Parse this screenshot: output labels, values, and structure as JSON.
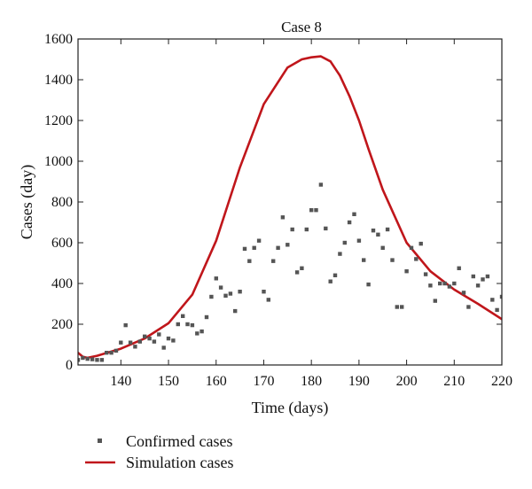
{
  "chart_data": {
    "type": "scatter",
    "title": "Case 8",
    "xlabel": "Time (days)",
    "ylabel": "Cases (day)",
    "xlim": [
      131,
      220
    ],
    "ylim": [
      0,
      1600
    ],
    "x_ticks": [
      140,
      150,
      160,
      170,
      180,
      190,
      200,
      210,
      220
    ],
    "y_ticks": [
      0,
      200,
      400,
      600,
      800,
      1000,
      1200,
      1400,
      1600
    ],
    "grid": false,
    "legend_position": "bottom-left",
    "series": [
      {
        "name": "Confirmed cases",
        "kind": "scatter",
        "color": "#555555",
        "points": [
          [
            131,
            25
          ],
          [
            132,
            35
          ],
          [
            133,
            30
          ],
          [
            134,
            28
          ],
          [
            135,
            25
          ],
          [
            136,
            25
          ],
          [
            137,
            60
          ],
          [
            138,
            60
          ],
          [
            139,
            70
          ],
          [
            140,
            110
          ],
          [
            141,
            195
          ],
          [
            142,
            110
          ],
          [
            143,
            90
          ],
          [
            144,
            115
          ],
          [
            145,
            140
          ],
          [
            146,
            130
          ],
          [
            147,
            115
          ],
          [
            148,
            150
          ],
          [
            149,
            85
          ],
          [
            150,
            130
          ],
          [
            151,
            120
          ],
          [
            152,
            200
          ],
          [
            153,
            240
          ],
          [
            154,
            200
          ],
          [
            155,
            195
          ],
          [
            156,
            155
          ],
          [
            157,
            165
          ],
          [
            158,
            235
          ],
          [
            159,
            335
          ],
          [
            160,
            425
          ],
          [
            161,
            380
          ],
          [
            162,
            340
          ],
          [
            163,
            350
          ],
          [
            164,
            265
          ],
          [
            165,
            360
          ],
          [
            166,
            570
          ],
          [
            167,
            510
          ],
          [
            168,
            575
          ],
          [
            169,
            610
          ],
          [
            170,
            360
          ],
          [
            171,
            320
          ],
          [
            172,
            510
          ],
          [
            173,
            575
          ],
          [
            174,
            725
          ],
          [
            175,
            590
          ],
          [
            176,
            665
          ],
          [
            177,
            455
          ],
          [
            178,
            475
          ],
          [
            179,
            665
          ],
          [
            180,
            760
          ],
          [
            181,
            760
          ],
          [
            182,
            885
          ],
          [
            183,
            670
          ],
          [
            184,
            410
          ],
          [
            185,
            440
          ],
          [
            186,
            545
          ],
          [
            187,
            600
          ],
          [
            188,
            700
          ],
          [
            189,
            740
          ],
          [
            190,
            610
          ],
          [
            191,
            515
          ],
          [
            192,
            395
          ],
          [
            193,
            660
          ],
          [
            194,
            640
          ],
          [
            195,
            575
          ],
          [
            196,
            665
          ],
          [
            197,
            515
          ],
          [
            198,
            285
          ],
          [
            199,
            285
          ],
          [
            200,
            460
          ],
          [
            201,
            575
          ],
          [
            202,
            520
          ],
          [
            203,
            595
          ],
          [
            204,
            445
          ],
          [
            205,
            390
          ],
          [
            206,
            315
          ],
          [
            207,
            400
          ],
          [
            208,
            400
          ],
          [
            209,
            385
          ],
          [
            210,
            400
          ],
          [
            211,
            475
          ],
          [
            212,
            355
          ],
          [
            213,
            285
          ],
          [
            214,
            435
          ],
          [
            215,
            390
          ],
          [
            216,
            420
          ],
          [
            217,
            435
          ],
          [
            218,
            320
          ],
          [
            219,
            270
          ],
          [
            220,
            335
          ]
        ]
      },
      {
        "name": "Simulation cases",
        "kind": "line",
        "color": "#c0161b",
        "points": [
          [
            131,
            60
          ],
          [
            132,
            40
          ],
          [
            133,
            35
          ],
          [
            135,
            45
          ],
          [
            140,
            80
          ],
          [
            145,
            130
          ],
          [
            150,
            205
          ],
          [
            155,
            345
          ],
          [
            160,
            610
          ],
          [
            165,
            970
          ],
          [
            170,
            1280
          ],
          [
            175,
            1460
          ],
          [
            178,
            1500
          ],
          [
            180,
            1510
          ],
          [
            182,
            1515
          ],
          [
            184,
            1490
          ],
          [
            186,
            1420
          ],
          [
            188,
            1320
          ],
          [
            190,
            1200
          ],
          [
            192,
            1060
          ],
          [
            195,
            860
          ],
          [
            200,
            600
          ],
          [
            205,
            460
          ],
          [
            210,
            370
          ],
          [
            215,
            300
          ],
          [
            220,
            225
          ]
        ]
      }
    ]
  }
}
